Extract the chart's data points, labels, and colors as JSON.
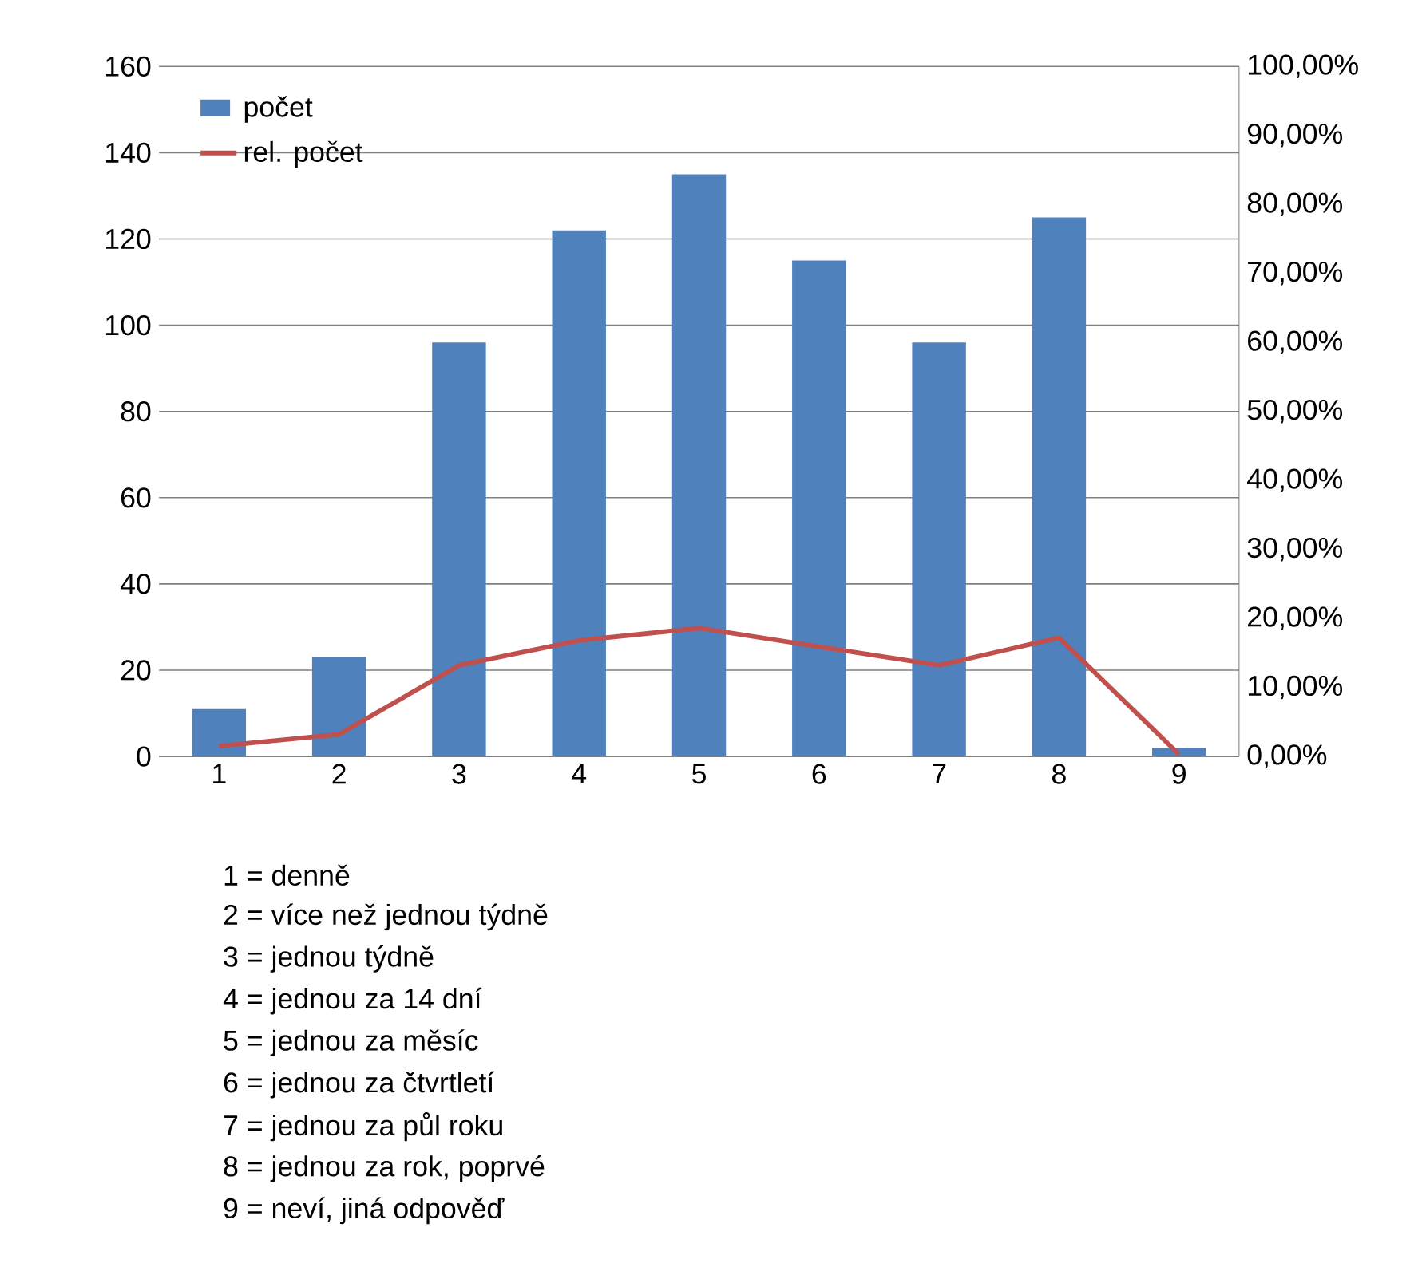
{
  "chart_data": {
    "type": "bar",
    "categories": [
      "1",
      "2",
      "3",
      "4",
      "5",
      "6",
      "7",
      "8",
      "9"
    ],
    "series": [
      {
        "name": "počet",
        "color": "#4f81bd",
        "values": [
          11,
          23,
          96,
          122,
          135,
          115,
          96,
          125,
          2
        ]
      },
      {
        "name": "rel. počet",
        "type": "line",
        "axis": "y2",
        "color": "#c0504d",
        "values": [
          1.5,
          3.2,
          13.2,
          16.8,
          18.6,
          15.9,
          13.2,
          17.2,
          0.3
        ]
      }
    ],
    "ylim": [
      0,
      160
    ],
    "yticks": [
      0,
      20,
      40,
      60,
      80,
      100,
      120,
      140,
      160
    ],
    "y2lim": [
      0,
      100
    ],
    "y2ticks": [
      {
        "value": 0,
        "label": "0,00%"
      },
      {
        "value": 10,
        "label": "10,00%"
      },
      {
        "value": 20,
        "label": "20,00%"
      },
      {
        "value": 30,
        "label": "30,00%"
      },
      {
        "value": 40,
        "label": "40,00%"
      },
      {
        "value": 50,
        "label": "50,00%"
      },
      {
        "value": 60,
        "label": "60,00%"
      },
      {
        "value": 70,
        "label": "70,00%"
      },
      {
        "value": 80,
        "label": "80,00%"
      },
      {
        "value": 90,
        "label": "90,00%"
      },
      {
        "value": 100,
        "label": "100,00%"
      }
    ],
    "grid": "y",
    "legend": "top left",
    "annotations": [
      "1 = denně",
      "2 = více než jednou týdně",
      "3 = jednou týdně",
      "4 = jednou za 14 dní",
      "5 = jednou za měsíc",
      "6 = jednou za čtvrtletí",
      "7 = jednou za půl roku",
      "8 = jednou za rok, poprvé",
      "9 = neví, jiná odpověď"
    ]
  }
}
